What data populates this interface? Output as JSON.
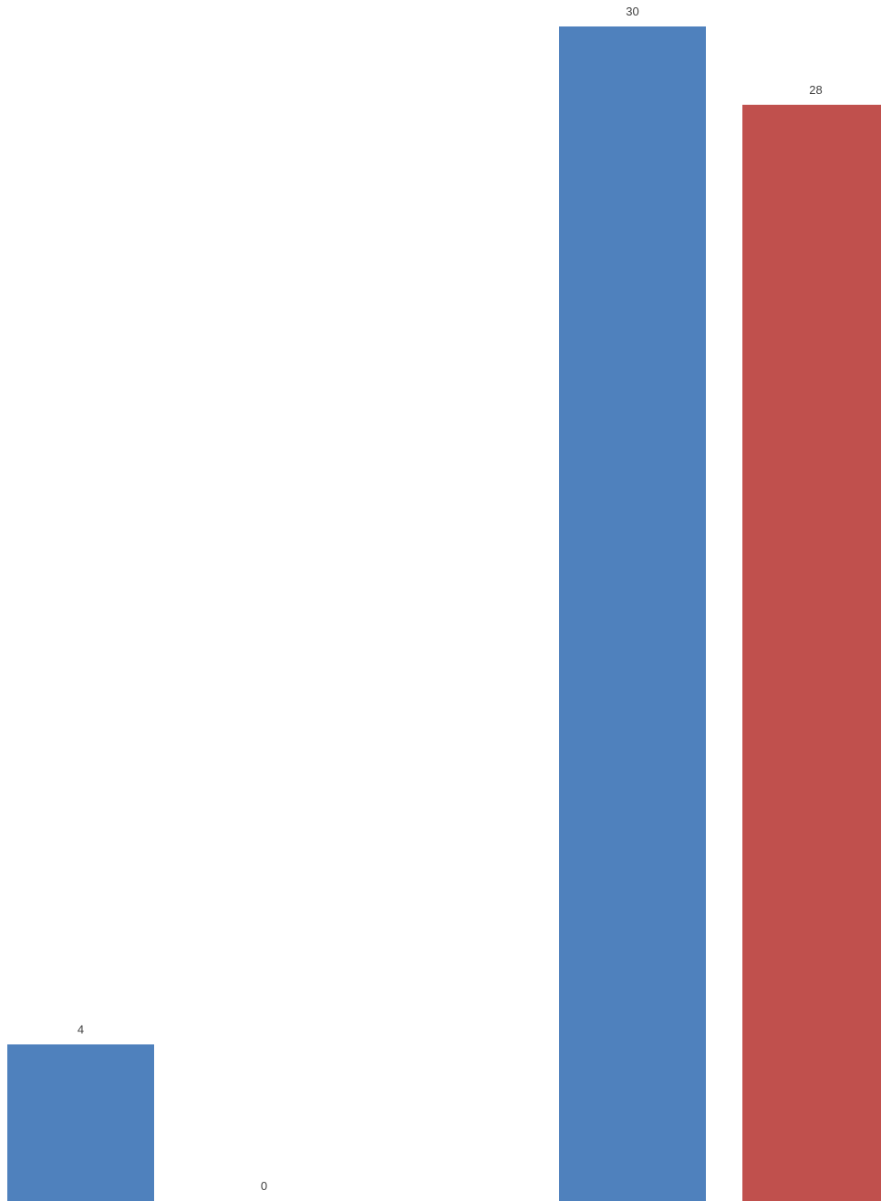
{
  "chart_data": {
    "type": "bar",
    "categories": [
      "",
      ""
    ],
    "series": [
      {
        "values": [
          4,
          30
        ],
        "color": "#4F81BD"
      },
      {
        "values": [
          0,
          28
        ],
        "color": "#C0504D"
      }
    ],
    "data_labels": true,
    "title": "",
    "xlabel": "",
    "ylabel": "",
    "ylim": [
      0,
      31
    ],
    "grid": false,
    "legend": "none"
  }
}
